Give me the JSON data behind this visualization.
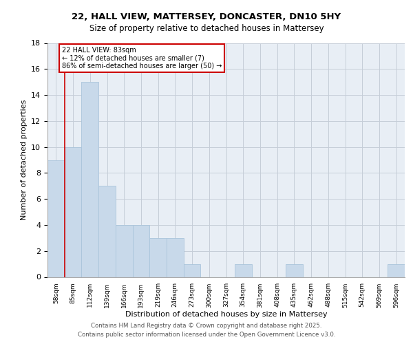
{
  "title_line1": "22, HALL VIEW, MATTERSEY, DONCASTER, DN10 5HY",
  "title_line2": "Size of property relative to detached houses in Mattersey",
  "xlabel": "Distribution of detached houses by size in Mattersey",
  "ylabel": "Number of detached properties",
  "footnote_line1": "Contains HM Land Registry data © Crown copyright and database right 2025.",
  "footnote_line2": "Contains public sector information licensed under the Open Government Licence v3.0.",
  "annotation_title": "22 HALL VIEW: 83sqm",
  "annotation_line1": "← 12% of detached houses are smaller (7)",
  "annotation_line2": "86% of semi-detached houses are larger (50) →",
  "bin_labels": [
    "58sqm",
    "85sqm",
    "112sqm",
    "139sqm",
    "166sqm",
    "193sqm",
    "219sqm",
    "246sqm",
    "273sqm",
    "300sqm",
    "327sqm",
    "354sqm",
    "381sqm",
    "408sqm",
    "435sqm",
    "462sqm",
    "488sqm",
    "515sqm",
    "542sqm",
    "569sqm",
    "596sqm"
  ],
  "bar_heights": [
    9,
    10,
    15,
    7,
    4,
    4,
    3,
    3,
    1,
    0,
    0,
    1,
    0,
    0,
    1,
    0,
    0,
    0,
    0,
    0,
    1
  ],
  "bar_color": "#c8d9ea",
  "bar_edge_color": "#aac4db",
  "vline_color": "#cc0000",
  "annotation_box_edge_color": "#cc0000",
  "background_color": "#ffffff",
  "plot_bg_color": "#e8eef5",
  "grid_color": "#c5cdd8",
  "ylim": [
    0,
    18
  ],
  "yticks": [
    0,
    2,
    4,
    6,
    8,
    10,
    12,
    14,
    16,
    18
  ]
}
